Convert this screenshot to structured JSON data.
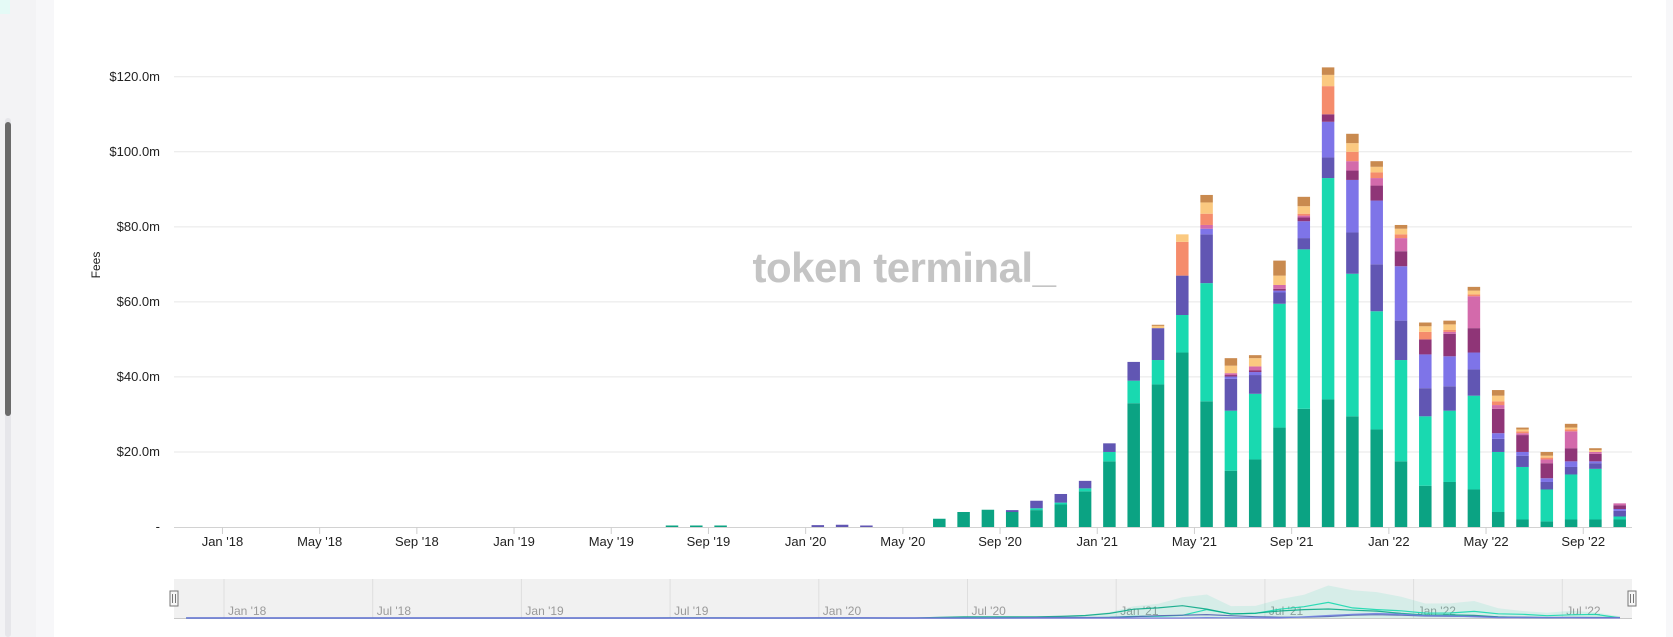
{
  "watermark": "token terminal_",
  "chart_data": {
    "type": "bar",
    "stacked": true,
    "title": "",
    "xlabel": "",
    "ylabel": "Fees",
    "ylim": [
      0,
      125
    ],
    "y_ticks": [
      {
        "value": 0,
        "label": "-"
      },
      {
        "value": 20,
        "label": "$20.0m"
      },
      {
        "value": 40,
        "label": "$40.0m"
      },
      {
        "value": 60,
        "label": "$60.0m"
      },
      {
        "value": 80,
        "label": "$80.0m"
      },
      {
        "value": 100,
        "label": "$100.0m"
      },
      {
        "value": 120,
        "label": "$120.0m"
      }
    ],
    "x_tick_labels": [
      {
        "label": "Jan '18",
        "index": 2
      },
      {
        "label": "May '18",
        "index": 6
      },
      {
        "label": "Sep '18",
        "index": 10
      },
      {
        "label": "Jan '19",
        "index": 14
      },
      {
        "label": "May '19",
        "index": 18
      },
      {
        "label": "Sep '19",
        "index": 22
      },
      {
        "label": "Jan '20",
        "index": 26
      },
      {
        "label": "May '20",
        "index": 30
      },
      {
        "label": "Sep '20",
        "index": 34
      },
      {
        "label": "Jan '21",
        "index": 38
      },
      {
        "label": "May '21",
        "index": 42
      },
      {
        "label": "Sep '21",
        "index": 46
      },
      {
        "label": "Jan '22",
        "index": 50
      },
      {
        "label": "May '22",
        "index": 54
      },
      {
        "label": "Sep '22",
        "index": 58
      }
    ],
    "grid": true,
    "series_colors": [
      "#0ba383",
      "#19d9b0",
      "#6156b3",
      "#7e74e8",
      "#8f3577",
      "#d36aab",
      "#f58c6c",
      "#fbc980",
      "#c98a4f"
    ],
    "months": [
      {
        "m": "Nov '17",
        "v": [
          0,
          0,
          0,
          0,
          0,
          0,
          0,
          0,
          0
        ]
      },
      {
        "m": "Dec '17",
        "v": [
          0,
          0,
          0,
          0,
          0,
          0,
          0,
          0,
          0
        ]
      },
      {
        "m": "Jan '18",
        "v": [
          0,
          0,
          0,
          0,
          0,
          0,
          0,
          0,
          0
        ]
      },
      {
        "m": "Feb '18",
        "v": [
          0,
          0,
          0,
          0,
          0,
          0,
          0,
          0,
          0
        ]
      },
      {
        "m": "Mar '18",
        "v": [
          0,
          0,
          0,
          0,
          0,
          0,
          0,
          0,
          0
        ]
      },
      {
        "m": "Apr '18",
        "v": [
          0,
          0,
          0,
          0,
          0,
          0,
          0,
          0,
          0
        ]
      },
      {
        "m": "May '18",
        "v": [
          0,
          0,
          0,
          0,
          0,
          0,
          0,
          0,
          0
        ]
      },
      {
        "m": "Jun '18",
        "v": [
          0,
          0,
          0,
          0,
          0,
          0,
          0,
          0,
          0
        ]
      },
      {
        "m": "Jul '18",
        "v": [
          0,
          0,
          0,
          0,
          0,
          0,
          0,
          0,
          0
        ]
      },
      {
        "m": "Aug '18",
        "v": [
          0,
          0,
          0,
          0,
          0,
          0,
          0,
          0,
          0
        ]
      },
      {
        "m": "Sep '18",
        "v": [
          0,
          0,
          0,
          0,
          0,
          0,
          0,
          0,
          0
        ]
      },
      {
        "m": "Oct '18",
        "v": [
          0,
          0,
          0,
          0,
          0,
          0,
          0,
          0,
          0
        ]
      },
      {
        "m": "Nov '18",
        "v": [
          0,
          0,
          0,
          0,
          0,
          0,
          0,
          0,
          0
        ]
      },
      {
        "m": "Dec '18",
        "v": [
          0,
          0,
          0,
          0,
          0,
          0,
          0,
          0,
          0
        ]
      },
      {
        "m": "Jan '19",
        "v": [
          0,
          0,
          0,
          0,
          0,
          0,
          0,
          0,
          0
        ]
      },
      {
        "m": "Feb '19",
        "v": [
          0,
          0,
          0,
          0,
          0,
          0,
          0,
          0,
          0
        ]
      },
      {
        "m": "Mar '19",
        "v": [
          0,
          0,
          0,
          0,
          0,
          0,
          0,
          0,
          0
        ]
      },
      {
        "m": "Apr '19",
        "v": [
          0,
          0,
          0,
          0,
          0,
          0,
          0,
          0,
          0
        ]
      },
      {
        "m": "May '19",
        "v": [
          0,
          0,
          0,
          0,
          0,
          0,
          0,
          0,
          0
        ]
      },
      {
        "m": "Jun '19",
        "v": [
          0,
          0,
          0,
          0,
          0,
          0,
          0,
          0,
          0
        ]
      },
      {
        "m": "Jul '19",
        "v": [
          0.4,
          0,
          0,
          0,
          0,
          0,
          0,
          0,
          0
        ]
      },
      {
        "m": "Aug '19",
        "v": [
          0.4,
          0,
          0,
          0,
          0,
          0,
          0,
          0,
          0
        ]
      },
      {
        "m": "Sep '19",
        "v": [
          0.4,
          0,
          0,
          0,
          0,
          0,
          0,
          0,
          0
        ]
      },
      {
        "m": "Oct '19",
        "v": [
          0,
          0,
          0,
          0,
          0,
          0,
          0,
          0,
          0
        ]
      },
      {
        "m": "Nov '19",
        "v": [
          0,
          0,
          0,
          0,
          0,
          0,
          0,
          0,
          0
        ]
      },
      {
        "m": "Dec '19",
        "v": [
          0,
          0,
          0,
          0,
          0,
          0,
          0,
          0,
          0
        ]
      },
      {
        "m": "Jan '20",
        "v": [
          0,
          0,
          0.5,
          0,
          0,
          0,
          0,
          0,
          0
        ]
      },
      {
        "m": "Feb '20",
        "v": [
          0,
          0,
          0.6,
          0,
          0,
          0,
          0,
          0,
          0
        ]
      },
      {
        "m": "Mar '20",
        "v": [
          0,
          0,
          0.4,
          0,
          0,
          0,
          0,
          0,
          0
        ]
      },
      {
        "m": "Apr '20",
        "v": [
          0,
          0,
          0,
          0,
          0,
          0,
          0,
          0,
          0
        ]
      },
      {
        "m": "May '20",
        "v": [
          0,
          0,
          0,
          0,
          0,
          0,
          0,
          0,
          0
        ]
      },
      {
        "m": "Jun '20",
        "v": [
          2.2,
          0,
          0,
          0,
          0,
          0,
          0,
          0,
          0
        ]
      },
      {
        "m": "Jul '20",
        "v": [
          4.0,
          0,
          0,
          0,
          0,
          0,
          0,
          0,
          0
        ]
      },
      {
        "m": "Aug '20",
        "v": [
          4.6,
          0,
          0,
          0,
          0,
          0,
          0,
          0,
          0
        ]
      },
      {
        "m": "Sep '20",
        "v": [
          4.0,
          0,
          0.5,
          0,
          0,
          0,
          0,
          0,
          0
        ]
      },
      {
        "m": "Oct '20",
        "v": [
          4.5,
          0.5,
          2.0,
          0,
          0,
          0,
          0,
          0,
          0
        ]
      },
      {
        "m": "Nov '20",
        "v": [
          6.0,
          0.5,
          2.3,
          0,
          0,
          0,
          0,
          0,
          0
        ]
      },
      {
        "m": "Dec '20",
        "v": [
          9.5,
          0.8,
          2.0,
          0,
          0,
          0,
          0,
          0,
          0
        ]
      },
      {
        "m": "Jan '21",
        "v": [
          17.5,
          2.5,
          2.3,
          0,
          0,
          0,
          0,
          0,
          0
        ]
      },
      {
        "m": "Feb '21",
        "v": [
          33,
          6,
          5,
          0,
          0,
          0,
          0,
          0,
          0
        ]
      },
      {
        "m": "Mar '21",
        "v": [
          38,
          6.5,
          8.5,
          0,
          0,
          0,
          0,
          0.6,
          0.3
        ]
      },
      {
        "m": "Apr '21",
        "v": [
          46.5,
          10,
          10.5,
          0,
          0,
          0,
          9,
          2,
          0
        ]
      },
      {
        "m": "May '21",
        "v": [
          33.5,
          31.5,
          13,
          1.5,
          0,
          1,
          3,
          3,
          2
        ]
      },
      {
        "m": "Jun '21",
        "v": [
          15,
          16,
          8.5,
          0.6,
          0.4,
          0.5,
          0,
          2,
          2
        ]
      },
      {
        "m": "Jul '21",
        "v": [
          18,
          17.5,
          5,
          0.8,
          0.5,
          1,
          0,
          2.2,
          0.8
        ]
      },
      {
        "m": "Aug '21",
        "v": [
          26.5,
          33,
          3,
          0.5,
          0.5,
          1,
          0,
          2.5,
          4
        ]
      },
      {
        "m": "Sep '21",
        "v": [
          31.5,
          42.5,
          3,
          4.5,
          1,
          0.5,
          0.5,
          2,
          2.5
        ]
      },
      {
        "m": "Oct '21",
        "v": [
          34,
          59,
          5.5,
          9.5,
          2,
          0,
          7.5,
          3,
          2
        ]
      },
      {
        "m": "Nov '21",
        "v": [
          29.5,
          38,
          11,
          14,
          2.5,
          2.5,
          2.5,
          2.3,
          2.5
        ]
      },
      {
        "m": "Dec '21",
        "v": [
          26,
          31.5,
          12.5,
          17,
          4,
          2,
          1.5,
          1.5,
          1.5
        ]
      },
      {
        "m": "Jan '22",
        "v": [
          17.5,
          27,
          10.5,
          14.5,
          4,
          3.5,
          1,
          1.5,
          1
        ]
      },
      {
        "m": "Feb '22",
        "v": [
          11,
          18.5,
          7.5,
          9,
          4,
          0,
          2,
          1.5,
          1
        ]
      },
      {
        "m": "Mar '22",
        "v": [
          12,
          19,
          6.5,
          8,
          6,
          0.5,
          0.5,
          1.5,
          1
        ]
      },
      {
        "m": "Apr '22",
        "v": [
          10,
          25,
          7,
          4.5,
          6.5,
          8.5,
          0.5,
          1,
          1
        ]
      },
      {
        "m": "May '22",
        "v": [
          4,
          16,
          3.5,
          1.5,
          6.5,
          1,
          1,
          1.5,
          1.5
        ]
      },
      {
        "m": "Jun '22",
        "v": [
          2,
          14,
          3,
          1,
          4.5,
          0.5,
          0.5,
          0.5,
          0.5
        ]
      },
      {
        "m": "Jul '22",
        "v": [
          1.5,
          8.5,
          2,
          1,
          4,
          1,
          0.5,
          0.5,
          1
        ]
      },
      {
        "m": "Aug '22",
        "v": [
          2,
          12,
          2,
          1.5,
          3.5,
          4.5,
          0.5,
          0.5,
          1
        ]
      },
      {
        "m": "Sep '22",
        "v": [
          2,
          13.5,
          1.5,
          0.5,
          2,
          0.5,
          0,
          0.5,
          0.5
        ]
      },
      {
        "m": "Oct '22",
        "v": [
          2,
          0.8,
          1.5,
          0.5,
          1,
          0.5,
          0,
          0,
          0
        ]
      }
    ]
  },
  "navigator": {
    "labels": [
      {
        "label": "Jan '18"
      },
      {
        "label": "Jul '18"
      },
      {
        "label": "Jan '19"
      },
      {
        "label": "Jul '19"
      },
      {
        "label": "Jan '20"
      },
      {
        "label": "Jul '20"
      },
      {
        "label": "Jan '21"
      },
      {
        "label": "Jul '21"
      },
      {
        "label": "Jan '22"
      },
      {
        "label": "Jul '22"
      }
    ]
  }
}
